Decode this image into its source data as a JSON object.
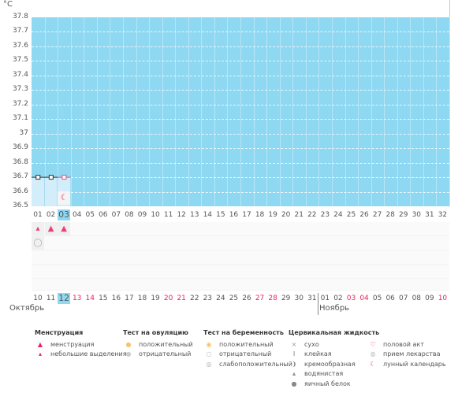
{
  "chart": {
    "unit": "°C",
    "y_ticks": [
      "37.8",
      "37.7",
      "37.6",
      "37.5",
      "37.4",
      "37.3",
      "37.2",
      "37.1",
      "37",
      "36.9",
      "36.8",
      "36.7",
      "36.6",
      "36.5"
    ],
    "days": [
      "01",
      "02",
      "03",
      "04",
      "05",
      "06",
      "07",
      "08",
      "09",
      "10",
      "11",
      "12",
      "13",
      "14",
      "15",
      "16",
      "17",
      "18",
      "19",
      "20",
      "21",
      "22",
      "23",
      "24",
      "25",
      "26",
      "27",
      "28",
      "29",
      "30",
      "31",
      "32"
    ],
    "selected_day_index": 2,
    "temperatures": [
      36.7,
      36.7,
      36.7
    ],
    "accent": "#8fd8f2"
  },
  "dates": {
    "labels": [
      "10",
      "11",
      "12",
      "13",
      "14",
      "15",
      "16",
      "17",
      "18",
      "19",
      "20",
      "21",
      "22",
      "23",
      "24",
      "25",
      "26",
      "27",
      "28",
      "29",
      "30",
      "31",
      "01",
      "02",
      "03",
      "04",
      "05",
      "06",
      "07",
      "08",
      "09",
      "10"
    ],
    "red": [
      3,
      4,
      10,
      11,
      17,
      18,
      24,
      25,
      31
    ],
    "selected": 2,
    "months": [
      "Октябрь",
      "Ноябрь"
    ]
  },
  "legend": [
    {
      "title": "Менструация",
      "items": [
        {
          "icon": "menstruation-icon",
          "label": "менструация"
        },
        {
          "icon": "spotting-icon",
          "label": "небольшие выделения"
        }
      ]
    },
    {
      "title": "Тест на овуляцию",
      "items": [
        {
          "icon": "ovulation-positive-icon",
          "label": "положительный"
        },
        {
          "icon": "ovulation-negative-icon",
          "label": "отрицательный"
        }
      ]
    },
    {
      "title": "Тест на беременность",
      "items": [
        {
          "icon": "pregnancy-positive-icon",
          "label": "положительный"
        },
        {
          "icon": "pregnancy-negative-icon",
          "label": "отрицательный"
        },
        {
          "icon": "pregnancy-weak-icon",
          "label": "слабоположительный"
        }
      ]
    },
    {
      "title": "Цервикальная жидкость",
      "items": [
        {
          "icon": "dry-icon",
          "label": "сухо"
        },
        {
          "icon": "sticky-icon",
          "label": "клейкая"
        },
        {
          "icon": "creamy-icon",
          "label": "кремообразная"
        },
        {
          "icon": "watery-icon",
          "label": "водянистая"
        },
        {
          "icon": "egg-white-icon",
          "label": "яичный белок"
        }
      ]
    },
    {
      "title": "",
      "items": [
        {
          "icon": "intercourse-icon",
          "label": "половой акт"
        },
        {
          "icon": "medication-icon",
          "label": "прием лекарства"
        },
        {
          "icon": "moon-icon",
          "label": "лунный календарь"
        }
      ]
    }
  ]
}
